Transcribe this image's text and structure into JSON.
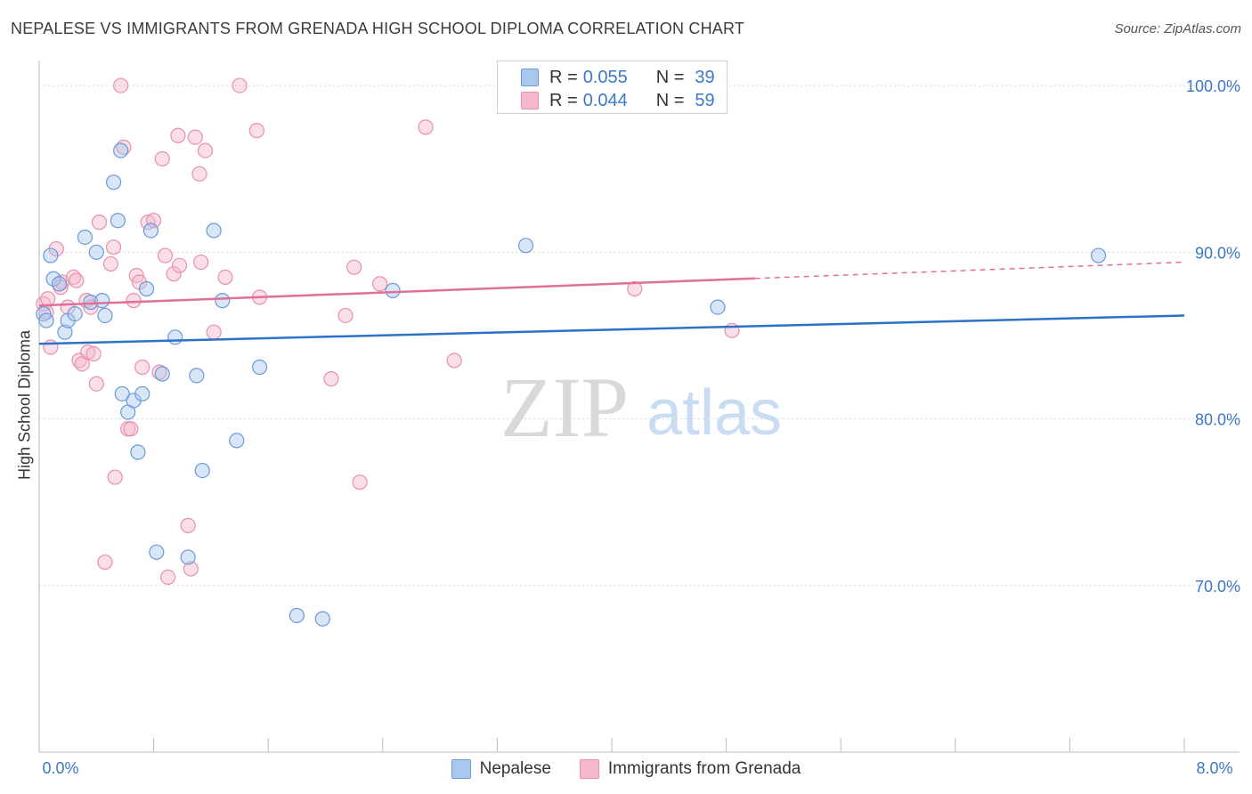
{
  "title": "NEPALESE VS IMMIGRANTS FROM GRENADA HIGH SCHOOL DIPLOMA CORRELATION CHART",
  "source": "Source: ZipAtlas.com",
  "watermark": {
    "zip": "ZIP",
    "atlas": "atlas"
  },
  "colors": {
    "blue_fill": "#a8c8f0",
    "blue_stroke": "#6a9ad8",
    "blue_line": "#2e72c8",
    "pink_fill": "#f5b8cc",
    "pink_stroke": "#e890ac",
    "pink_line": "#e07098",
    "accent_text": "#3c78c8",
    "grid": "#d8d8d8"
  },
  "legend": {
    "series": [
      {
        "name": "Nepalese",
        "r_label": "R =",
        "r_value": "0.055",
        "n_label": "N =",
        "n_value": "39"
      },
      {
        "name": "Immigrants from Grenada",
        "r_label": "R =",
        "r_value": "0.044",
        "n_label": "N =",
        "n_value": "59"
      }
    ]
  },
  "chart_data": {
    "type": "scatter",
    "title": "NEPALESE VS IMMIGRANTS FROM GRENADA HIGH SCHOOL DIPLOMA CORRELATION CHART",
    "xlabel": "",
    "ylabel": "High School Diploma",
    "xlim": [
      0,
      8
    ],
    "ylim": [
      60,
      101.5
    ],
    "x_tick_labels": [
      {
        "value": 0,
        "label": "0.0%"
      },
      {
        "value": 8,
        "label": "8.0%"
      }
    ],
    "y_tick_labels": [
      {
        "value": 100,
        "label": "100.0%"
      },
      {
        "value": 90,
        "label": "90.0%"
      },
      {
        "value": 80,
        "label": "80.0%"
      },
      {
        "value": 70,
        "label": "70.0%"
      }
    ],
    "series": [
      {
        "name": "Nepalese",
        "color": "blue",
        "trend": {
          "x0": 0.0,
          "y0": 84.5,
          "x1": 8.0,
          "y1": 86.2,
          "solid_until": 8.0
        },
        "points": [
          [
            0.03,
            86.3
          ],
          [
            0.05,
            85.9
          ],
          [
            0.08,
            89.8
          ],
          [
            0.1,
            88.4
          ],
          [
            0.14,
            88.1
          ],
          [
            0.18,
            85.2
          ],
          [
            0.2,
            85.9
          ],
          [
            0.25,
            86.3
          ],
          [
            0.32,
            90.9
          ],
          [
            0.36,
            87.0
          ],
          [
            0.4,
            90.0
          ],
          [
            0.44,
            87.1
          ],
          [
            0.46,
            86.2
          ],
          [
            0.52,
            94.2
          ],
          [
            0.55,
            91.9
          ],
          [
            0.57,
            96.1
          ],
          [
            0.58,
            81.5
          ],
          [
            0.62,
            80.4
          ],
          [
            0.66,
            81.1
          ],
          [
            0.69,
            78.0
          ],
          [
            0.72,
            81.5
          ],
          [
            0.75,
            87.8
          ],
          [
            0.78,
            91.3
          ],
          [
            0.82,
            72.0
          ],
          [
            0.86,
            82.7
          ],
          [
            0.95,
            84.9
          ],
          [
            1.04,
            71.7
          ],
          [
            1.1,
            82.6
          ],
          [
            1.14,
            76.9
          ],
          [
            1.22,
            91.3
          ],
          [
            1.28,
            87.1
          ],
          [
            1.38,
            78.7
          ],
          [
            1.54,
            83.1
          ],
          [
            1.8,
            68.2
          ],
          [
            1.98,
            68.0
          ],
          [
            2.47,
            87.7
          ],
          [
            3.4,
            90.4
          ],
          [
            4.74,
            86.7
          ],
          [
            7.4,
            89.8
          ]
        ]
      },
      {
        "name": "Immigrants from Grenada",
        "color": "pink",
        "trend": {
          "x0": 0.0,
          "y0": 86.8,
          "x1": 8.0,
          "y1": 89.4,
          "solid_until": 5.0
        },
        "points": [
          [
            0.03,
            86.9
          ],
          [
            0.05,
            86.4
          ],
          [
            0.08,
            84.3
          ],
          [
            0.12,
            90.2
          ],
          [
            0.16,
            88.2
          ],
          [
            0.2,
            86.7
          ],
          [
            0.24,
            88.5
          ],
          [
            0.26,
            88.3
          ],
          [
            0.28,
            83.5
          ],
          [
            0.3,
            83.3
          ],
          [
            0.33,
            87.1
          ],
          [
            0.34,
            84.0
          ],
          [
            0.36,
            86.7
          ],
          [
            0.38,
            83.9
          ],
          [
            0.4,
            82.1
          ],
          [
            0.42,
            91.8
          ],
          [
            0.46,
            71.4
          ],
          [
            0.5,
            89.3
          ],
          [
            0.52,
            90.3
          ],
          [
            0.53,
            76.5
          ],
          [
            0.57,
            100.0
          ],
          [
            0.59,
            96.3
          ],
          [
            0.62,
            79.4
          ],
          [
            0.64,
            79.4
          ],
          [
            0.66,
            87.1
          ],
          [
            0.68,
            88.6
          ],
          [
            0.7,
            88.2
          ],
          [
            0.72,
            83.1
          ],
          [
            0.76,
            91.8
          ],
          [
            0.8,
            91.9
          ],
          [
            0.84,
            82.8
          ],
          [
            0.86,
            95.6
          ],
          [
            0.88,
            89.8
          ],
          [
            0.9,
            70.5
          ],
          [
            0.94,
            88.7
          ],
          [
            0.97,
            97.0
          ],
          [
            1.04,
            73.6
          ],
          [
            1.06,
            71.0
          ],
          [
            1.09,
            96.9
          ],
          [
            1.12,
            94.7
          ],
          [
            1.16,
            96.1
          ],
          [
            1.22,
            85.2
          ],
          [
            1.3,
            88.5
          ],
          [
            1.4,
            100.0
          ],
          [
            1.52,
            97.3
          ],
          [
            1.54,
            87.3
          ],
          [
            2.04,
            82.4
          ],
          [
            2.14,
            86.2
          ],
          [
            2.2,
            89.1
          ],
          [
            2.24,
            76.2
          ],
          [
            2.38,
            88.1
          ],
          [
            2.7,
            97.5
          ],
          [
            2.9,
            83.5
          ],
          [
            4.16,
            87.8
          ],
          [
            4.84,
            85.3
          ],
          [
            0.06,
            87.2
          ],
          [
            0.15,
            87.9
          ],
          [
            0.98,
            89.2
          ],
          [
            1.13,
            89.4
          ]
        ]
      }
    ]
  }
}
